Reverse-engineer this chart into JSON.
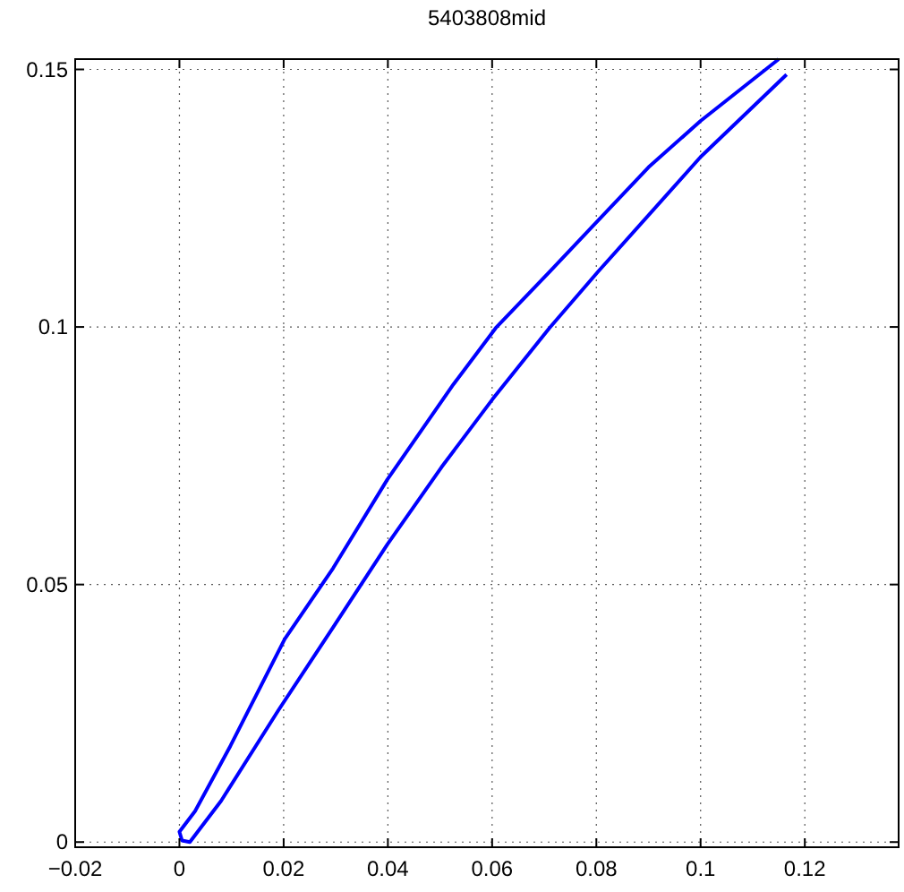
{
  "chart_data": {
    "type": "line",
    "title": "5403808mid",
    "xlim": [
      -0.02,
      0.138
    ],
    "ylim": [
      -0.001,
      0.152
    ],
    "xticks": [
      {
        "value": -0.02,
        "label": "−0.02"
      },
      0,
      0.02,
      0.04,
      0.06,
      0.08,
      0.1,
      0.12
    ],
    "yticks": [
      0,
      0.05,
      0.1,
      0.15
    ],
    "grid": true,
    "line_style": "solid",
    "marker": "none",
    "series": [
      {
        "color": "#0000ff",
        "x": [
          0.115,
          0.1,
          0.09,
          0.071,
          0.0607,
          0.0526,
          0.0399,
          0.0295,
          0.0202,
          0.0098,
          0.003,
          0,
          0.0005,
          0.002,
          0.008,
          0.019,
          0.0295,
          0.0399,
          0.0503,
          0.0601,
          0.071,
          0.0803,
          0.1,
          0.1165
        ],
        "values": [
          0.152,
          0.14,
          0.131,
          0.1107,
          0.0998,
          0.0889,
          0.0704,
          0.0532,
          0.0394,
          0.0187,
          0.006,
          0.002,
          0.0003,
          0,
          0.008,
          0.0256,
          0.0417,
          0.0578,
          0.0728,
          0.086,
          0.0998,
          0.1107,
          0.133,
          0.149
        ]
      }
    ]
  }
}
